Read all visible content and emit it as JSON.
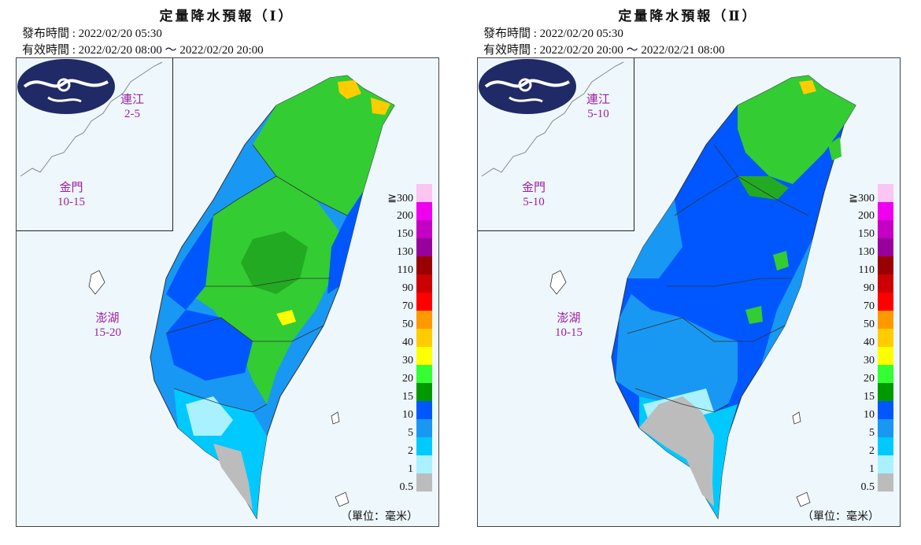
{
  "panels": [
    {
      "title": "定量降水預報（Ⅰ）",
      "issue_time": "發布時間 : 2022/02/20 05:30",
      "valid_time": "有效時間 : 2022/02/20 08:00 ～ 2022/02/20 20:00",
      "islands": [
        {
          "name": "連江",
          "range": "2-5"
        },
        {
          "name": "金門",
          "range": "10-15"
        },
        {
          "name": "澎湖",
          "range": "15-20"
        }
      ],
      "unit": "（單位：毫米）"
    },
    {
      "title": "定量降水預報（Ⅱ）",
      "issue_time": "發布時間 : 2022/02/20 05:30",
      "valid_time": "有效時間 : 2022/02/20 20:00 ～ 2022/02/21 08:00",
      "islands": [
        {
          "name": "連江",
          "range": "5-10"
        },
        {
          "name": "金門",
          "range": "5-10"
        },
        {
          "name": "澎湖",
          "range": "10-15"
        }
      ],
      "unit": "（單位：毫米）"
    }
  ],
  "legend": {
    "ticks": [
      "≧300",
      "200",
      "150",
      "130",
      "110",
      "90",
      "70",
      "50",
      "40",
      "30",
      "20",
      "15",
      "10",
      "5",
      "2",
      "1",
      "0.5"
    ],
    "colors": [
      "#fbc4f2",
      "#ee00ee",
      "#c300c3",
      "#98009a",
      "#9a0000",
      "#cc0000",
      "#ff0000",
      "#ff9900",
      "#ffcc00",
      "#ffff00",
      "#33ff33",
      "#009900",
      "#0057ff",
      "#1898f2",
      "#00c9ff",
      "#a9f1ff",
      "#bcbcbc"
    ]
  },
  "logo": {
    "icon": "cwb-logo-icon"
  }
}
